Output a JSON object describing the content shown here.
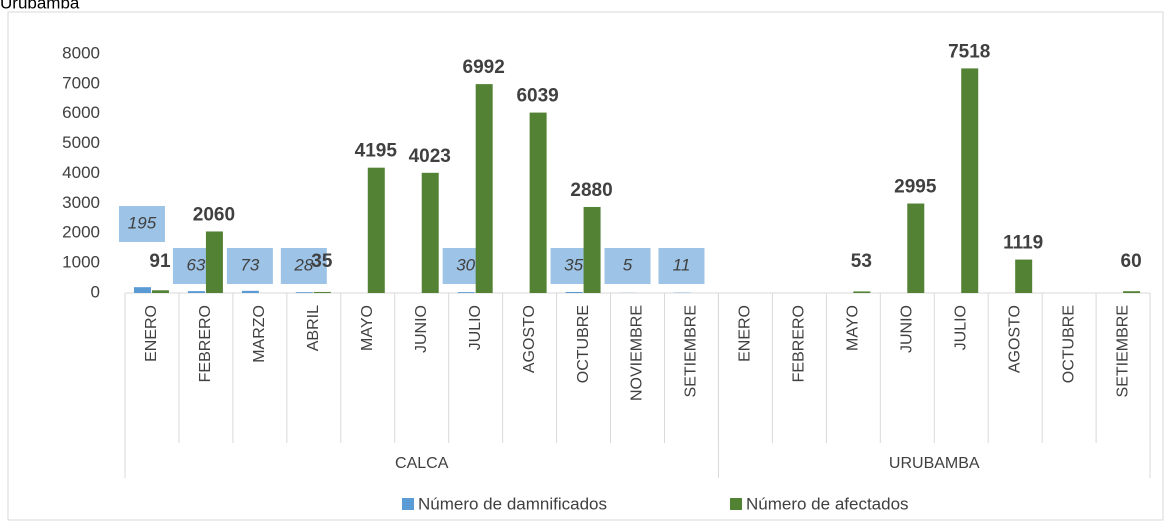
{
  "chart_data": {
    "type": "bar",
    "title": "Urubamba",
    "groups": [
      {
        "name": "CALCA",
        "categories": [
          "ENERO",
          "FEBRERO",
          "MARZO",
          "ABRIL",
          "MAYO",
          "JUNIO",
          "JULIO",
          "AGOSTO",
          "OCTUBRE",
          "NOVIEMBRE",
          "SETIEMBRE"
        ]
      },
      {
        "name": "URUBAMBA",
        "categories": [
          "ENERO",
          "FEBRERO",
          "MAYO",
          "JUNIO",
          "JULIO",
          "AGOSTO",
          "OCTUBRE",
          "SETIEMBRE"
        ]
      }
    ],
    "series": [
      {
        "name": "Número de damnificados",
        "color": "#5b9bd5",
        "label_box": "#9dc3e6",
        "values": [
          [
            195,
            63,
            73,
            28,
            null,
            null,
            30,
            null,
            35,
            5,
            11
          ],
          [
            null,
            null,
            null,
            null,
            null,
            null,
            null,
            null
          ]
        ]
      },
      {
        "name": "Número de afectados",
        "color": "#548235",
        "values": [
          [
            91,
            2060,
            null,
            35,
            4195,
            4023,
            6992,
            6039,
            2880,
            null,
            null
          ],
          [
            null,
            null,
            53,
            2995,
            7518,
            1119,
            null,
            60
          ]
        ]
      }
    ],
    "ylim": [
      0,
      8000
    ],
    "yticks": [
      0,
      1000,
      2000,
      3000,
      4000,
      5000,
      6000,
      7000,
      8000
    ],
    "grid": false,
    "legend": "bottom"
  }
}
